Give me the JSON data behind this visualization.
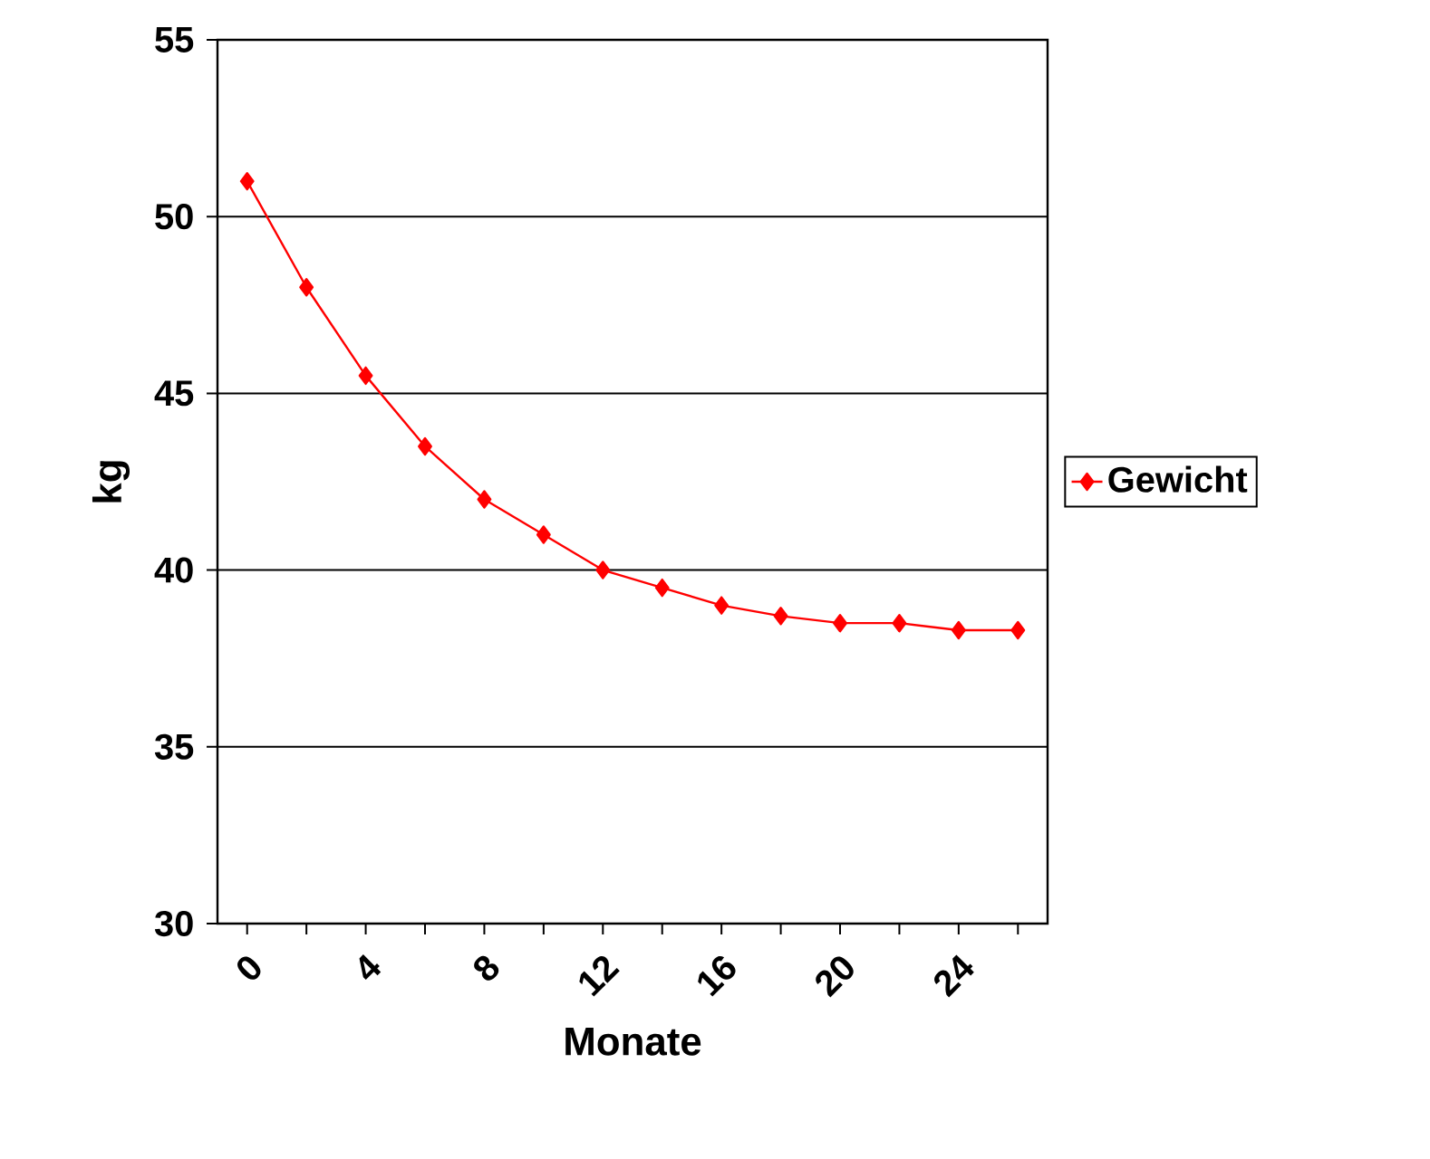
{
  "chart_data": {
    "type": "line",
    "xlabel": "Monate",
    "ylabel": "kg",
    "categories": [
      "0",
      null,
      "4",
      null,
      "8",
      null,
      "12",
      null,
      "16",
      null,
      "20",
      null,
      "24",
      null
    ],
    "series": [
      {
        "name": "Gewicht",
        "color": "#ff0000",
        "values": [
          51,
          48,
          45.5,
          43.5,
          42,
          41,
          40,
          39.5,
          39,
          38.7,
          38.5,
          38.5,
          38.3,
          38.3
        ]
      }
    ],
    "ylim": [
      30,
      55
    ],
    "yticks": [
      30,
      35,
      40,
      45,
      50,
      55
    ],
    "grid": "y",
    "legend": "right",
    "marker": "diamond",
    "line_style": "solid"
  }
}
